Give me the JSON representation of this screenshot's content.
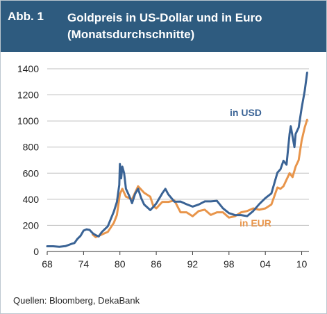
{
  "header": {
    "figure_label": "Abb. 1",
    "title_line1": "Goldpreis in US-Dollar und in Euro",
    "title_line2": "(Monatsdurchschnitte)"
  },
  "source": "Quellen: Bloomberg, DekaBank",
  "colors": {
    "header_bg": "#2e5b7f",
    "usd": "#3a6395",
    "eur": "#e8954b",
    "grid": "#bfbfbf"
  },
  "chart_data": {
    "type": "line",
    "title": "Goldpreis in US-Dollar und in Euro",
    "subtitle": "(Monatsdurchschnitte)",
    "xlabel": "",
    "ylabel": "",
    "xlim": [
      1968,
      2011.2
    ],
    "ylim": [
      0,
      1400
    ],
    "yticks": [
      0,
      200,
      400,
      600,
      800,
      1000,
      1200,
      1400
    ],
    "xticks": [
      1968,
      1974,
      1980,
      1986,
      1992,
      1998,
      2004,
      2010
    ],
    "xtick_labels": [
      "68",
      "74",
      "80",
      "86",
      "92",
      "98",
      "04",
      "10"
    ],
    "grid": "horizontal",
    "series": [
      {
        "name": "in USD",
        "x": [
          1968,
          1969,
          1970,
          1971,
          1972,
          1972.5,
          1973,
          1973.5,
          1974,
          1974.5,
          1975,
          1975.5,
          1976,
          1976.5,
          1977,
          1978,
          1979,
          1979.5,
          1979.9,
          1980,
          1980.2,
          1980.4,
          1980.7,
          1981,
          1981.5,
          1982,
          1982.5,
          1983,
          1983.5,
          1984,
          1985,
          1985.5,
          1986,
          1987,
          1987.5,
          1988,
          1989,
          1990,
          1991,
          1992,
          1993,
          1994,
          1995,
          1996,
          1997,
          1998,
          1999,
          2000,
          2001,
          2002,
          2003,
          2004,
          2005,
          2006,
          2006.5,
          2007,
          2007.5,
          2008,
          2008.2,
          2008.8,
          2009,
          2009.5,
          2010,
          2010.5,
          2010.9
        ],
        "values": [
          40,
          40,
          36,
          41,
          58,
          65,
          97,
          120,
          160,
          170,
          165,
          140,
          125,
          115,
          148,
          193,
          306,
          380,
          510,
          670,
          560,
          650,
          600,
          480,
          430,
          370,
          440,
          480,
          410,
          360,
          317,
          340,
          368,
          446,
          480,
          437,
          381,
          383,
          362,
          344,
          360,
          384,
          384,
          388,
          331,
          294,
          279,
          279,
          271,
          310,
          363,
          409,
          445,
          604,
          630,
          695,
          665,
          900,
          960,
          800,
          900,
          950,
          1100,
          1230,
          1370
        ]
      },
      {
        "name": "in EUR",
        "x": [
          1975.5,
          1976,
          1977,
          1978,
          1979,
          1979.5,
          1980,
          1980.4,
          1981,
          1981.5,
          1982,
          1983,
          1984,
          1985,
          1985.5,
          1986,
          1987,
          1988,
          1989,
          1990,
          1991,
          1992,
          1993,
          1994,
          1995,
          1996,
          1997,
          1998,
          1999,
          2000,
          2001,
          2002,
          2003,
          2004,
          2005,
          2006,
          2006.5,
          2007,
          2008,
          2008.5,
          2009,
          2009.5,
          2010,
          2010.5,
          2010.9
        ],
        "values": [
          130,
          110,
          130,
          150,
          220,
          280,
          440,
          480,
          420,
          410,
          400,
          500,
          450,
          420,
          350,
          330,
          380,
          380,
          390,
          300,
          300,
          270,
          310,
          320,
          280,
          300,
          300,
          260,
          270,
          300,
          310,
          330,
          320,
          330,
          360,
          490,
          480,
          500,
          600,
          570,
          650,
          700,
          850,
          950,
          1010
        ]
      }
    ],
    "annotations": [
      "in USD",
      "in EUR"
    ]
  }
}
